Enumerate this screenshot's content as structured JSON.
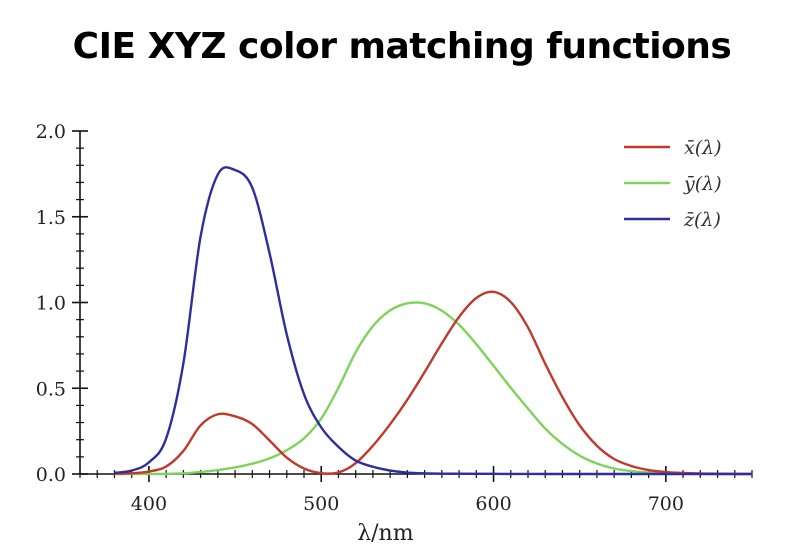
{
  "title": "CIE XYZ color matching functions",
  "chart_data": {
    "type": "line",
    "xlabel": "λ/nm",
    "ylabel": "",
    "xlim": [
      360,
      750
    ],
    "ylim": [
      0,
      2.0
    ],
    "xticks": [
      400,
      500,
      600,
      700
    ],
    "xtick_labels": [
      "400",
      "500",
      "600",
      "700"
    ],
    "yticks": [
      0.0,
      0.5,
      1.0,
      1.5,
      2.0
    ],
    "ytick_labels": [
      "0.0",
      "0.5",
      "1.0",
      "1.5",
      "2.0"
    ],
    "grid": false,
    "legend": "top-right",
    "series": [
      {
        "name": "x̄(λ)",
        "color": "#c0392b",
        "x": [
          380,
          390,
          400,
          410,
          420,
          430,
          440,
          450,
          460,
          470,
          480,
          490,
          500,
          510,
          520,
          530,
          540,
          550,
          560,
          570,
          580,
          590,
          600,
          610,
          620,
          630,
          640,
          650,
          660,
          670,
          680,
          690,
          700,
          710,
          720,
          730,
          740,
          750
        ],
        "y": [
          0.0014,
          0.0042,
          0.0143,
          0.0435,
          0.1344,
          0.2839,
          0.3483,
          0.3362,
          0.2908,
          0.1954,
          0.0956,
          0.032,
          0.0049,
          0.0093,
          0.0633,
          0.1655,
          0.2904,
          0.4334,
          0.5945,
          0.7621,
          0.9163,
          1.0263,
          1.0622,
          1.0026,
          0.8544,
          0.6424,
          0.4479,
          0.2835,
          0.1649,
          0.0874,
          0.0468,
          0.0227,
          0.0114,
          0.0058,
          0.0029,
          0.0014,
          0.0007,
          0.0003
        ]
      },
      {
        "name": "ȳ(λ)",
        "color": "#7fd35a",
        "x": [
          380,
          390,
          400,
          410,
          420,
          430,
          440,
          450,
          460,
          470,
          480,
          490,
          500,
          510,
          520,
          530,
          540,
          550,
          560,
          570,
          580,
          590,
          600,
          610,
          620,
          630,
          640,
          650,
          660,
          670,
          680,
          690,
          700,
          710,
          720,
          730,
          740,
          750
        ],
        "y": [
          0.0,
          0.0001,
          0.0004,
          0.0012,
          0.004,
          0.0116,
          0.023,
          0.038,
          0.06,
          0.091,
          0.139,
          0.208,
          0.323,
          0.503,
          0.71,
          0.862,
          0.954,
          0.995,
          0.995,
          0.952,
          0.87,
          0.757,
          0.631,
          0.503,
          0.381,
          0.265,
          0.175,
          0.107,
          0.061,
          0.032,
          0.017,
          0.0082,
          0.0041,
          0.0021,
          0.001,
          0.0005,
          0.0002,
          0.0001
        ]
      },
      {
        "name": "z̄(λ)",
        "color": "#2e2e9e",
        "x": [
          380,
          390,
          400,
          410,
          420,
          430,
          440,
          450,
          460,
          470,
          480,
          490,
          500,
          510,
          520,
          530,
          540,
          550,
          560,
          570,
          580,
          590,
          600,
          610,
          620,
          630,
          640,
          650,
          660,
          670,
          680,
          690,
          700,
          710,
          720,
          730,
          740,
          750
        ],
        "y": [
          0.0065,
          0.0201,
          0.0679,
          0.2074,
          0.6456,
          1.3856,
          1.7471,
          1.7721,
          1.6692,
          1.2876,
          0.813,
          0.4652,
          0.272,
          0.1582,
          0.0782,
          0.0422,
          0.0203,
          0.0087,
          0.0039,
          0.0021,
          0.0017,
          0.0011,
          0.0008,
          0.0003,
          0.0002,
          0.0,
          0.0,
          0.0,
          0.0,
          0.0,
          0.0,
          0.0,
          0.0,
          0.0,
          0.0,
          0.0,
          0.0,
          0.0
        ]
      }
    ]
  }
}
